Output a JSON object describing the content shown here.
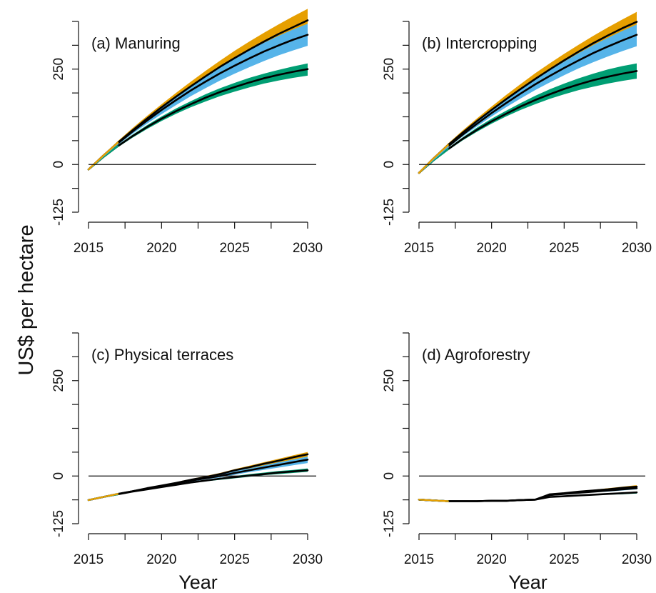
{
  "y_axis_label": "US$ per hectare",
  "x_axis_label": "Year",
  "colors": {
    "scenario_upper": "#E69F00",
    "scenario_mid": "#56B4E9",
    "scenario_lower": "#009E73",
    "mean_line": "#000000"
  },
  "chart_data": [
    {
      "type": "line",
      "title": "(a)  Manuring",
      "xlabel": "",
      "ylabel": "US$ per hectare",
      "xlim": [
        2015,
        2030
      ],
      "ylim": [
        -125,
        375
      ],
      "xticks": [
        2015,
        2020,
        2025,
        2030
      ],
      "yticks": [
        -125,
        0,
        250
      ],
      "ytick_labels": [
        "-125",
        "0",
        "250"
      ],
      "grid": false,
      "x": [
        2015,
        2016,
        2017,
        2018,
        2019,
        2020,
        2021,
        2022,
        2023,
        2024,
        2025,
        2026,
        2027,
        2028,
        2029,
        2030
      ],
      "series": [
        {
          "color": "orange",
          "mean": [
            -13,
            23,
            57,
            89,
            120,
            150,
            178,
            205,
            231,
            256,
            279,
            301,
            322,
            342,
            360,
            378
          ],
          "low": [
            -13,
            21,
            54,
            85,
            114,
            142,
            168,
            193,
            217,
            240,
            261,
            281,
            300,
            318,
            334,
            349
          ],
          "high": [
            -13,
            25,
            61,
            95,
            127,
            158,
            188,
            217,
            245,
            272,
            298,
            322,
            345,
            367,
            388,
            408
          ]
        },
        {
          "color": "blue",
          "mean": [
            -13,
            22,
            55,
            86,
            115,
            143,
            169,
            194,
            217,
            239,
            259,
            278,
            296,
            312,
            327,
            340
          ],
          "low": [
            -13,
            20,
            51,
            80,
            107,
            132,
            156,
            179,
            200,
            220,
            238,
            255,
            271,
            286,
            299,
            311
          ],
          "high": [
            -13,
            24,
            59,
            92,
            123,
            152,
            180,
            207,
            232,
            256,
            278,
            299,
            319,
            337,
            354,
            369
          ]
        },
        {
          "color": "green",
          "mean": [
            -13,
            19,
            48,
            74,
            98,
            120,
            140,
            158,
            175,
            190,
            203,
            215,
            226,
            235,
            243,
            250
          ],
          "low": [
            -13,
            17,
            45,
            70,
            93,
            114,
            133,
            150,
            165,
            179,
            191,
            202,
            212,
            220,
            227,
            233
          ],
          "high": [
            -13,
            21,
            51,
            78,
            103,
            126,
            147,
            166,
            184,
            200,
            214,
            227,
            238,
            248,
            257,
            265
          ]
        }
      ]
    },
    {
      "type": "line",
      "title": "(b) Intercropping",
      "xlabel": "",
      "ylabel": "",
      "xlim": [
        2015,
        2030
      ],
      "ylim": [
        -125,
        375
      ],
      "xticks": [
        2015,
        2020,
        2025,
        2030
      ],
      "yticks": [
        -125,
        0,
        250
      ],
      "ytick_labels": [
        "-125",
        "0",
        "250"
      ],
      "grid": false,
      "x": [
        2015,
        2016,
        2017,
        2018,
        2019,
        2020,
        2021,
        2022,
        2023,
        2024,
        2025,
        2026,
        2027,
        2028,
        2029,
        2030
      ],
      "series": [
        {
          "color": "orange",
          "mean": [
            -22,
            16,
            51,
            83,
            114,
            143,
            171,
            198,
            224,
            249,
            273,
            296,
            318,
            338,
            357,
            374
          ],
          "low": [
            -22,
            14,
            48,
            79,
            108,
            136,
            162,
            187,
            211,
            234,
            255,
            275,
            294,
            312,
            328,
            343
          ],
          "high": [
            -22,
            18,
            55,
            89,
            121,
            152,
            182,
            211,
            239,
            265,
            290,
            314,
            337,
            359,
            380,
            400
          ]
        },
        {
          "color": "blue",
          "mean": [
            -22,
            14,
            47,
            78,
            107,
            135,
            161,
            186,
            210,
            232,
            253,
            273,
            292,
            309,
            325,
            340
          ],
          "low": [
            -22,
            12,
            44,
            73,
            100,
            126,
            150,
            173,
            195,
            215,
            234,
            252,
            268,
            283,
            297,
            310
          ],
          "high": [
            -22,
            16,
            51,
            83,
            114,
            143,
            171,
            198,
            223,
            247,
            270,
            292,
            313,
            332,
            350,
            367
          ]
        },
        {
          "color": "green",
          "mean": [
            -22,
            11,
            40,
            67,
            91,
            113,
            133,
            152,
            169,
            184,
            198,
            210,
            221,
            230,
            238,
            245
          ],
          "low": [
            -22,
            9,
            37,
            63,
            86,
            107,
            126,
            143,
            158,
            172,
            184,
            195,
            204,
            212,
            219,
            225
          ],
          "high": [
            -22,
            13,
            43,
            71,
            97,
            120,
            141,
            161,
            180,
            197,
            212,
            226,
            238,
            249,
            258,
            265
          ]
        }
      ]
    },
    {
      "type": "line",
      "title": "(c)  Physical terraces",
      "xlabel": "Year",
      "ylabel": "",
      "xlim": [
        2015,
        2030
      ],
      "ylim": [
        -125,
        375
      ],
      "xticks": [
        2015,
        2020,
        2025,
        2030
      ],
      "yticks": [
        -125,
        0,
        250
      ],
      "ytick_labels": [
        "-125",
        "0",
        "250"
      ],
      "grid": false,
      "x": [
        2015,
        2016,
        2017,
        2018,
        2019,
        2020,
        2021,
        2022,
        2023,
        2024,
        2025,
        2026,
        2027,
        2028,
        2029,
        2030
      ],
      "series": [
        {
          "color": "orange",
          "mean": [
            -63,
            -55,
            -47,
            -40,
            -32,
            -25,
            -18,
            -10,
            -3,
            5,
            15,
            23,
            32,
            40,
            49,
            57
          ],
          "low": [
            -63,
            -55,
            -47,
            -40,
            -33,
            -26,
            -19,
            -12,
            -5,
            2,
            11,
            19,
            27,
            35,
            43,
            51
          ],
          "high": [
            -63,
            -55,
            -47,
            -39,
            -31,
            -24,
            -16,
            -8,
            0,
            8,
            18,
            27,
            36,
            45,
            54,
            63
          ]
        },
        {
          "color": "blue",
          "mean": [
            -63,
            -55,
            -47,
            -40,
            -33,
            -26,
            -19,
            -12,
            -6,
            0,
            8,
            15,
            22,
            29,
            36,
            43
          ],
          "low": [
            -63,
            -55,
            -48,
            -41,
            -34,
            -28,
            -22,
            -15,
            -9,
            -4,
            3,
            10,
            16,
            22,
            28,
            34
          ],
          "high": [
            -63,
            -55,
            -47,
            -40,
            -32,
            -24,
            -16,
            -9,
            -2,
            5,
            13,
            20,
            28,
            36,
            43,
            51
          ]
        },
        {
          "color": "green",
          "mean": [
            -63,
            -55,
            -48,
            -41,
            -35,
            -29,
            -23,
            -17,
            -12,
            -7,
            -3,
            1,
            5,
            9,
            12,
            15
          ],
          "low": [
            -63,
            -55,
            -48,
            -42,
            -36,
            -30,
            -25,
            -19,
            -14,
            -10,
            -6,
            -2,
            2,
            5,
            8,
            11
          ],
          "high": [
            -63,
            -55,
            -48,
            -41,
            -34,
            -28,
            -21,
            -15,
            -10,
            -5,
            0,
            5,
            9,
            13,
            16,
            20
          ]
        }
      ]
    },
    {
      "type": "line",
      "title": "(d) Agroforestry",
      "xlabel": "Year",
      "ylabel": "",
      "xlim": [
        2015,
        2030
      ],
      "ylim": [
        -125,
        375
      ],
      "xticks": [
        2015,
        2020,
        2025,
        2030
      ],
      "yticks": [
        -125,
        0,
        250
      ],
      "ytick_labels": [
        "-125",
        "0",
        "250"
      ],
      "grid": false,
      "x": [
        2015,
        2016,
        2017,
        2018,
        2019,
        2020,
        2021,
        2022,
        2023,
        2024,
        2025,
        2026,
        2027,
        2028,
        2029,
        2030
      ],
      "series": [
        {
          "color": "orange",
          "mean": [
            -62,
            -64,
            -66,
            -66,
            -66,
            -65,
            -65,
            -63,
            -62,
            -48,
            -45,
            -41,
            -38,
            -35,
            -31,
            -28
          ],
          "low": [
            -62,
            -64,
            -66,
            -66,
            -66,
            -65,
            -65,
            -63,
            -62,
            -50,
            -47,
            -44,
            -41,
            -38,
            -35,
            -32
          ],
          "high": [
            -62,
            -64,
            -66,
            -66,
            -66,
            -65,
            -65,
            -63,
            -62,
            -46,
            -43,
            -39,
            -36,
            -32,
            -28,
            -24
          ]
        },
        {
          "color": "blue",
          "mean": [
            -62,
            -64,
            -66,
            -66,
            -66,
            -65,
            -65,
            -63,
            -62,
            -50,
            -47,
            -44,
            -41,
            -38,
            -35,
            -32
          ],
          "low": [
            -62,
            -64,
            -66,
            -66,
            -66,
            -65,
            -65,
            -63,
            -62,
            -52,
            -49,
            -46,
            -43,
            -41,
            -38,
            -35
          ],
          "high": [
            -62,
            -64,
            -66,
            -66,
            -66,
            -65,
            -65,
            -63,
            -62,
            -48,
            -45,
            -42,
            -39,
            -36,
            -33,
            -29
          ]
        },
        {
          "color": "green",
          "mean": [
            -62,
            -64,
            -66,
            -66,
            -66,
            -65,
            -65,
            -63,
            -62,
            -55,
            -53,
            -51,
            -49,
            -47,
            -45,
            -43
          ],
          "low": [
            -62,
            -64,
            -66,
            -66,
            -66,
            -65,
            -65,
            -63,
            -62,
            -56,
            -54,
            -53,
            -51,
            -49,
            -48,
            -46
          ],
          "high": [
            -62,
            -64,
            -66,
            -66,
            -66,
            -65,
            -65,
            -63,
            -62,
            -54,
            -52,
            -50,
            -48,
            -46,
            -43,
            -41
          ]
        }
      ]
    }
  ]
}
